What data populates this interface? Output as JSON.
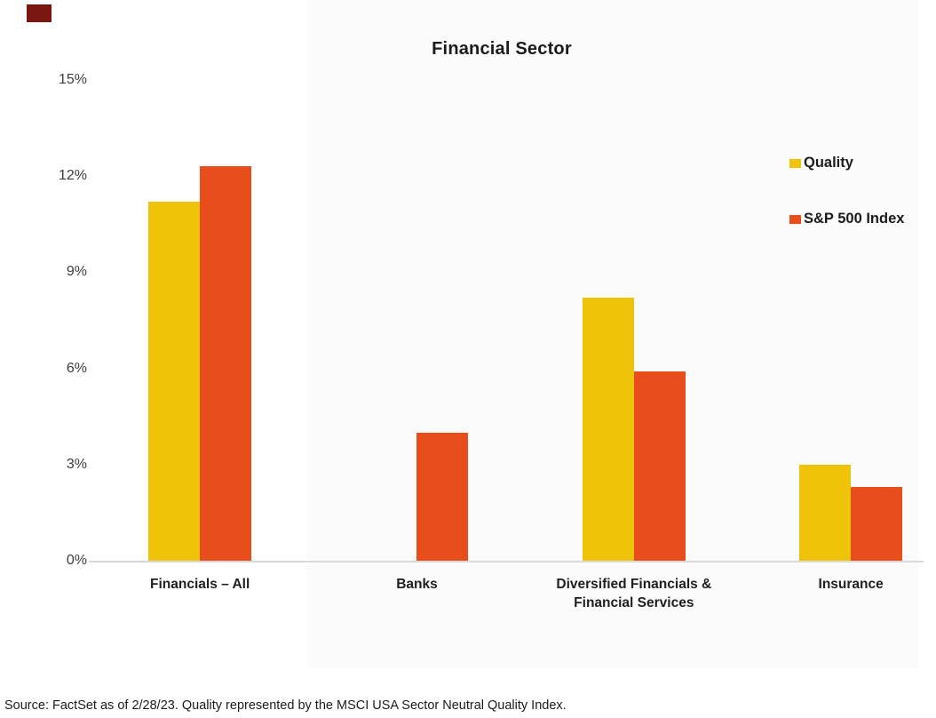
{
  "title": "Financial Sector",
  "legend": {
    "items": [
      {
        "label": "Quality",
        "color": "#f0c30b"
      },
      {
        "label": "S&P 500 Index",
        "color": "#e84d1c"
      }
    ]
  },
  "source_note": "Source: FactSet as of 2/28/23. Quality represented by the MSCI USA Sector Neutral Quality Index.",
  "chart_data": {
    "type": "bar",
    "title": "Financial Sector",
    "categories": [
      "Financials – All",
      "Banks",
      "Diversified Financials &\nFinancial Services",
      "Insurance"
    ],
    "series": [
      {
        "name": "Quality",
        "color": "#f0c30b",
        "values": [
          11.2,
          0,
          8.2,
          3.0
        ]
      },
      {
        "name": "S&P 500 Index",
        "color": "#e84d1c",
        "values": [
          12.3,
          4.0,
          5.9,
          2.3
        ]
      }
    ],
    "xlabel": "",
    "ylabel": "",
    "ylim": [
      0,
      15
    ],
    "ytick_values": [
      0,
      3,
      6,
      9,
      12,
      15
    ],
    "ytick_labels": [
      "0%",
      "3%",
      "6%",
      "9%",
      "12%",
      "15%"
    ],
    "grid": false,
    "legend_position": "right"
  }
}
